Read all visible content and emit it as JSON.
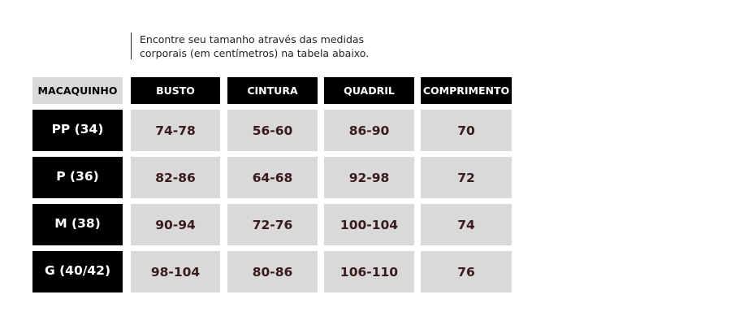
{
  "intro": {
    "line1": "Encontre seu tamanho através das medidas",
    "line2": "corporais (em centímetros) na tabela abaixo."
  },
  "table": {
    "headers": [
      "MACAQUINHO",
      "BUSTO",
      "CINTURA",
      "QUADRIL",
      "COMPRIMENTO"
    ],
    "rows": [
      {
        "size": "PP (34)",
        "values": [
          "74-78",
          "56-60",
          "86-90",
          "70"
        ]
      },
      {
        "size": "P (36)",
        "values": [
          "82-86",
          "64-68",
          "92-98",
          "72"
        ]
      },
      {
        "size": "M (38)",
        "values": [
          "90-94",
          "72-76",
          "100-104",
          "74"
        ]
      },
      {
        "size": "G (40/42)",
        "values": [
          "98-104",
          "80-86",
          "106-110",
          "76"
        ]
      }
    ]
  },
  "colors": {
    "header_bg": "#000000",
    "header_first_bg": "#d9d9d9",
    "cell_bg": "#d9d9d9",
    "value_text": "#3a1b1b"
  }
}
